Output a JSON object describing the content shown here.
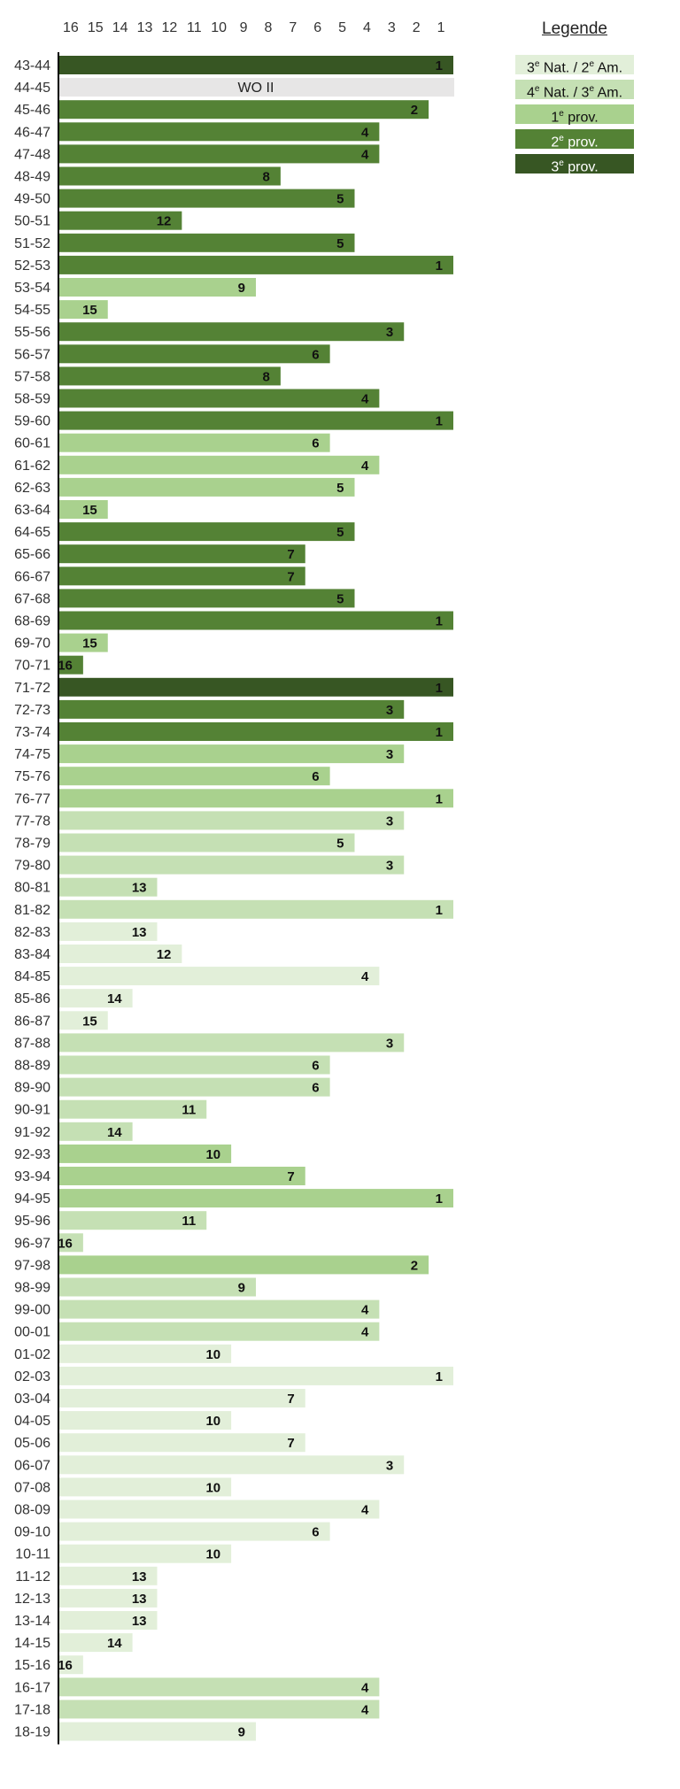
{
  "chart_data": {
    "type": "bar",
    "orientation": "horizontal",
    "x_axis": {
      "ticks": [
        "16",
        "15",
        "14",
        "13",
        "12",
        "11",
        "10",
        "9",
        "8",
        "7",
        "6",
        "5",
        "4",
        "3",
        "2",
        "1"
      ],
      "reversed": true,
      "range": [
        16,
        1
      ],
      "position": "top"
    },
    "grid": false,
    "legend": {
      "title": "Legende",
      "placement": "top-right",
      "items": [
        {
          "key": "nat3",
          "ordinal": "3",
          "sup": "e",
          "rest": " Nat. / ",
          "ordinal2": "2",
          "sup2": "e",
          "rest2": " Am.",
          "color": "#e2efd9"
        },
        {
          "key": "nat4",
          "ordinal": "4",
          "sup": "e",
          "rest": " Nat. / ",
          "ordinal2": "3",
          "sup2": "e",
          "rest2": " Am.",
          "color": "#c5e0b4"
        },
        {
          "key": "prov1",
          "ordinal": "1",
          "sup": "e",
          "rest": " prov.",
          "color": "#a9d18e"
        },
        {
          "key": "prov2",
          "ordinal": "2",
          "sup": "e",
          "rest": " prov.",
          "color": "#548235"
        },
        {
          "key": "prov3",
          "ordinal": "3",
          "sup": "e",
          "rest": " prov.",
          "color": "#375623"
        }
      ]
    },
    "rows": [
      {
        "season": "43-44",
        "value": 1,
        "tier": "prov3"
      },
      {
        "season": "44-45",
        "value": null,
        "tier": "war",
        "text": "WO II"
      },
      {
        "season": "45-46",
        "value": 2,
        "tier": "prov2"
      },
      {
        "season": "46-47",
        "value": 4,
        "tier": "prov2"
      },
      {
        "season": "47-48",
        "value": 4,
        "tier": "prov2"
      },
      {
        "season": "48-49",
        "value": 8,
        "tier": "prov2"
      },
      {
        "season": "49-50",
        "value": 5,
        "tier": "prov2"
      },
      {
        "season": "50-51",
        "value": 12,
        "tier": "prov2"
      },
      {
        "season": "51-52",
        "value": 5,
        "tier": "prov2"
      },
      {
        "season": "52-53",
        "value": 1,
        "tier": "prov2"
      },
      {
        "season": "53-54",
        "value": 9,
        "tier": "prov1"
      },
      {
        "season": "54-55",
        "value": 15,
        "tier": "prov1"
      },
      {
        "season": "55-56",
        "value": 3,
        "tier": "prov2"
      },
      {
        "season": "56-57",
        "value": 6,
        "tier": "prov2"
      },
      {
        "season": "57-58",
        "value": 8,
        "tier": "prov2"
      },
      {
        "season": "58-59",
        "value": 4,
        "tier": "prov2"
      },
      {
        "season": "59-60",
        "value": 1,
        "tier": "prov2"
      },
      {
        "season": "60-61",
        "value": 6,
        "tier": "prov1"
      },
      {
        "season": "61-62",
        "value": 4,
        "tier": "prov1"
      },
      {
        "season": "62-63",
        "value": 5,
        "tier": "prov1"
      },
      {
        "season": "63-64",
        "value": 15,
        "tier": "prov1"
      },
      {
        "season": "64-65",
        "value": 5,
        "tier": "prov2"
      },
      {
        "season": "65-66",
        "value": 7,
        "tier": "prov2"
      },
      {
        "season": "66-67",
        "value": 7,
        "tier": "prov2"
      },
      {
        "season": "67-68",
        "value": 5,
        "tier": "prov2"
      },
      {
        "season": "68-69",
        "value": 1,
        "tier": "prov2"
      },
      {
        "season": "69-70",
        "value": 15,
        "tier": "prov1"
      },
      {
        "season": "70-71",
        "value": 16,
        "tier": "prov2"
      },
      {
        "season": "71-72",
        "value": 1,
        "tier": "prov3"
      },
      {
        "season": "72-73",
        "value": 3,
        "tier": "prov2"
      },
      {
        "season": "73-74",
        "value": 1,
        "tier": "prov2"
      },
      {
        "season": "74-75",
        "value": 3,
        "tier": "prov1"
      },
      {
        "season": "75-76",
        "value": 6,
        "tier": "prov1"
      },
      {
        "season": "76-77",
        "value": 1,
        "tier": "prov1"
      },
      {
        "season": "77-78",
        "value": 3,
        "tier": "nat4"
      },
      {
        "season": "78-79",
        "value": 5,
        "tier": "nat4"
      },
      {
        "season": "79-80",
        "value": 3,
        "tier": "nat4"
      },
      {
        "season": "80-81",
        "value": 13,
        "tier": "nat4"
      },
      {
        "season": "81-82",
        "value": 1,
        "tier": "nat4"
      },
      {
        "season": "82-83",
        "value": 13,
        "tier": "nat3"
      },
      {
        "season": "83-84",
        "value": 12,
        "tier": "nat3"
      },
      {
        "season": "84-85",
        "value": 4,
        "tier": "nat3"
      },
      {
        "season": "85-86",
        "value": 14,
        "tier": "nat3"
      },
      {
        "season": "86-87",
        "value": 15,
        "tier": "nat3"
      },
      {
        "season": "87-88",
        "value": 3,
        "tier": "nat4"
      },
      {
        "season": "88-89",
        "value": 6,
        "tier": "nat4"
      },
      {
        "season": "89-90",
        "value": 6,
        "tier": "nat4"
      },
      {
        "season": "90-91",
        "value": 11,
        "tier": "nat4"
      },
      {
        "season": "91-92",
        "value": 14,
        "tier": "nat4"
      },
      {
        "season": "92-93",
        "value": 10,
        "tier": "prov1"
      },
      {
        "season": "93-94",
        "value": 7,
        "tier": "prov1"
      },
      {
        "season": "94-95",
        "value": 1,
        "tier": "prov1"
      },
      {
        "season": "95-96",
        "value": 11,
        "tier": "nat4"
      },
      {
        "season": "96-97",
        "value": 16,
        "tier": "nat4"
      },
      {
        "season": "97-98",
        "value": 2,
        "tier": "prov1"
      },
      {
        "season": "98-99",
        "value": 9,
        "tier": "nat4"
      },
      {
        "season": "99-00",
        "value": 4,
        "tier": "nat4"
      },
      {
        "season": "00-01",
        "value": 4,
        "tier": "nat4"
      },
      {
        "season": "01-02",
        "value": 10,
        "tier": "nat3"
      },
      {
        "season": "02-03",
        "value": 1,
        "tier": "nat3"
      },
      {
        "season": "03-04",
        "value": 7,
        "tier": "nat3"
      },
      {
        "season": "04-05",
        "value": 10,
        "tier": "nat3"
      },
      {
        "season": "05-06",
        "value": 7,
        "tier": "nat3"
      },
      {
        "season": "06-07",
        "value": 3,
        "tier": "nat3"
      },
      {
        "season": "07-08",
        "value": 10,
        "tier": "nat3"
      },
      {
        "season": "08-09",
        "value": 4,
        "tier": "nat3"
      },
      {
        "season": "09-10",
        "value": 6,
        "tier": "nat3"
      },
      {
        "season": "10-11",
        "value": 10,
        "tier": "nat3"
      },
      {
        "season": "11-12",
        "value": 13,
        "tier": "nat3"
      },
      {
        "season": "12-13",
        "value": 13,
        "tier": "nat3"
      },
      {
        "season": "13-14",
        "value": 13,
        "tier": "nat3"
      },
      {
        "season": "14-15",
        "value": 14,
        "tier": "nat3"
      },
      {
        "season": "15-16",
        "value": 16,
        "tier": "nat3"
      },
      {
        "season": "16-17",
        "value": 4,
        "tier": "nat4"
      },
      {
        "season": "17-18",
        "value": 4,
        "tier": "nat4"
      },
      {
        "season": "18-19",
        "value": 9,
        "tier": "nat3"
      }
    ],
    "colors": {
      "nat3": "#e2efd9",
      "nat4": "#c5e0b4",
      "prov1": "#a9d18e",
      "prov2": "#548235",
      "prov3": "#375623",
      "war": "#e7e6e6",
      "bar_label_on_dark": "#ffffff",
      "bar_label_on_light": "#111111",
      "axis": "#000000"
    }
  }
}
